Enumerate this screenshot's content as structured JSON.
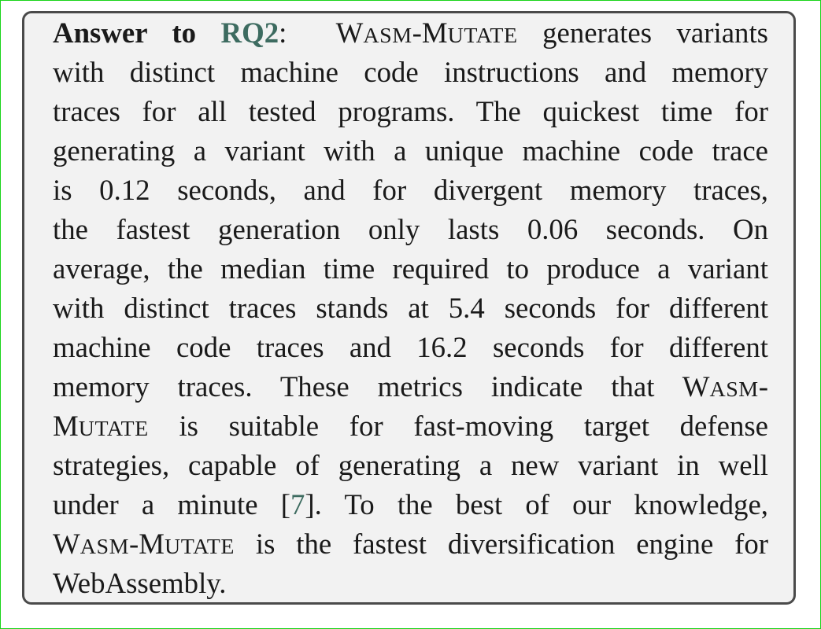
{
  "colors": {
    "frame_border": "#19d419",
    "box_background": "#f2f2f2",
    "box_border": "#4a4a4a",
    "text": "#1a1a1a",
    "link": "#3d6b60"
  },
  "takeaway": {
    "label": "Answer to",
    "rq_link": "RQ2",
    "colon": ":",
    "tool_name": {
      "w1_initial": "W",
      "w1_rest": "ASM",
      "hyphen": "-",
      "w2_initial": "M",
      "w2_rest": "UTATE"
    },
    "line1_rest": "generates variants",
    "line2": "with distinct machine code instructions and memory",
    "line3": "traces for all tested programs.  The quickest time for",
    "line4": "generating a variant with a unique machine code trace",
    "line5": "is 0.12 seconds, and for divergent memory traces,",
    "line6": "the fastest generation only lasts 0.06 seconds.  On",
    "line7": "average, the median time required to produce a variant",
    "line8": "with distinct traces stands at 5.4 seconds for different",
    "line9": "machine code traces and 16.2 seconds for different",
    "line10_text": "memory traces.  These metrics indicate that",
    "line11_rest": "is suitable for fast-moving target defense",
    "line12": "strategies, capable of generating a new variant in well",
    "line13_before": "under a minute [",
    "citation": "7",
    "line13_after": "].  To the best of our knowledge,",
    "line14_rest": "is the fastest diversification engine for",
    "line15": "WebAssembly."
  }
}
